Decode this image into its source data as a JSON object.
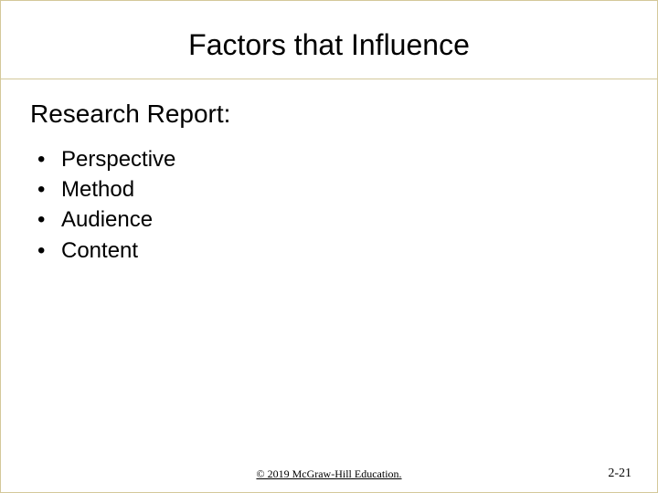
{
  "slide": {
    "title": "Factors that Influence",
    "subheading": "Research Report:",
    "bullets": {
      "item0": "Perspective",
      "item1": "Method",
      "item2": "Audience",
      "item3": "Content"
    },
    "footer": {
      "copyright": "© 2019 McGraw-Hill Education.",
      "page_number": "2-21"
    }
  },
  "style": {
    "border_color": "#d4c89a",
    "background_color": "#ffffff",
    "title_fontsize": 32,
    "subheading_fontsize": 28,
    "bullet_fontsize": 24,
    "footer_fontsize": 12,
    "page_number_fontsize": 14,
    "text_color": "#000000"
  }
}
